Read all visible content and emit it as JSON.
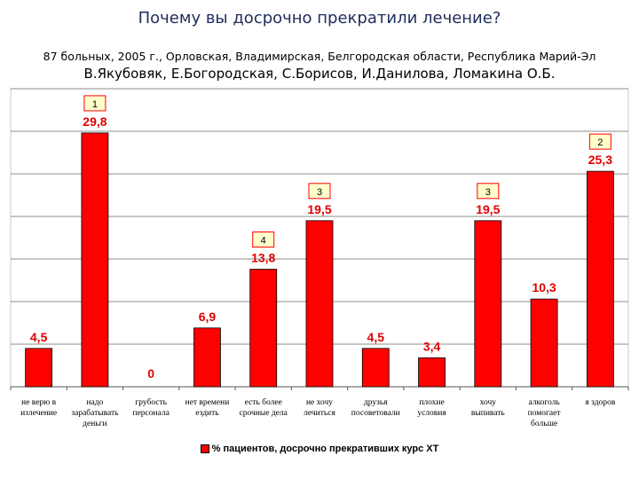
{
  "header": {
    "title": "Почему вы досрочно прекратили лечение?",
    "subtitle": "87 больных, 2005 г., Орловская, Владимирская, Белгородская области, Республика  Марий-Эл",
    "authors": "В.Якубовяк, Е.Богородская, С.Борисов, И.Данилова, Ломакина О.Б."
  },
  "chart_data": {
    "type": "bar",
    "categories": [
      [
        "не верю в",
        "излечение"
      ],
      [
        "надо",
        "зарабатывать",
        "деньги"
      ],
      [
        "грубость",
        "персонала"
      ],
      [
        "нет времени",
        "ездить"
      ],
      [
        "есть более",
        "срочные дела"
      ],
      [
        "не хочу",
        "лечиться"
      ],
      [
        "друзья",
        "посоветовали"
      ],
      [
        "плохие",
        "условия"
      ],
      [
        "хочу",
        "выпивать"
      ],
      [
        "алкоголь",
        "помогает",
        "больше"
      ],
      [
        "я здоров"
      ]
    ],
    "series": [
      {
        "name": "% пациентов, досрочно прекративших курс ХТ",
        "values": [
          4.5,
          29.8,
          0,
          6.9,
          13.8,
          19.5,
          4.5,
          3.4,
          19.5,
          10.3,
          25.3
        ],
        "labels": [
          "4,5",
          "29,8",
          "0",
          "6,9",
          "13,8",
          "19,5",
          "4,5",
          "3,4",
          "19,5",
          "10,3",
          "25,3"
        ]
      }
    ],
    "annotations": [
      {
        "category_index": 1,
        "text": "1"
      },
      {
        "category_index": 10,
        "text": "2"
      },
      {
        "category_index": 5,
        "text": "3"
      },
      {
        "category_index": 8,
        "text": "3"
      },
      {
        "category_index": 4,
        "text": "4"
      }
    ],
    "ylim": [
      0,
      35
    ],
    "grid": true,
    "legend_position": "bottom",
    "colors": {
      "bar": "#ff0000",
      "label": "#e00000",
      "annotation_border": "#ff0000",
      "annotation_fill": "#ffffcc"
    }
  }
}
